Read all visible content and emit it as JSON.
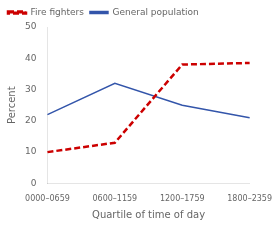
{
  "chart_data": {
    "type": "line",
    "categories": [
      "0000–0659",
      "0600–1159",
      "1200–1759",
      "1800–2359"
    ],
    "series": [
      {
        "name": "Fire fighters",
        "color": "#cc0000",
        "line_style": "dashed",
        "values": [
          10,
          13,
          38,
          38.5
        ]
      },
      {
        "name": "General population",
        "color": "#3355aa",
        "line_style": "solid",
        "values": [
          22,
          32,
          25,
          21
        ]
      }
    ],
    "xlabel": "Quartile of time of day",
    "ylabel": "Percent",
    "ylim": [
      0,
      50
    ],
    "yticks": [
      0,
      10,
      20,
      30,
      40,
      50
    ],
    "grid": false,
    "legend": "upper left"
  }
}
